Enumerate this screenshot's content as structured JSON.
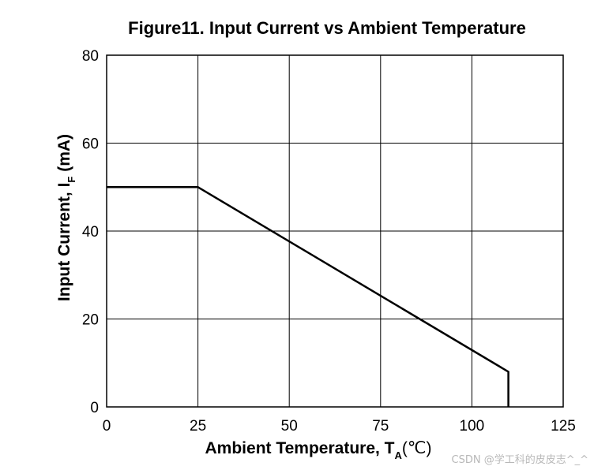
{
  "chart_data": {
    "type": "line",
    "title": "Figure11. Input Current vs Ambient Temperature",
    "xlabel_main": "Ambient Temperature, T",
    "xlabel_sub": "A",
    "xlabel_unit": "(℃)",
    "ylabel_main": "Input Current, I",
    "ylabel_sub": "F",
    "ylabel_unit": " (mA)",
    "xlim": [
      0,
      125
    ],
    "ylim": [
      0,
      80
    ],
    "xticks": [
      0,
      25,
      50,
      75,
      100,
      125
    ],
    "yticks": [
      0,
      20,
      40,
      60,
      80
    ],
    "grid": true,
    "series": [
      {
        "x": [
          0,
          25,
          110,
          110
        ],
        "y": [
          50,
          50,
          8,
          0
        ]
      }
    ]
  },
  "watermark": "CSDN @学工科的皮皮志^_^"
}
